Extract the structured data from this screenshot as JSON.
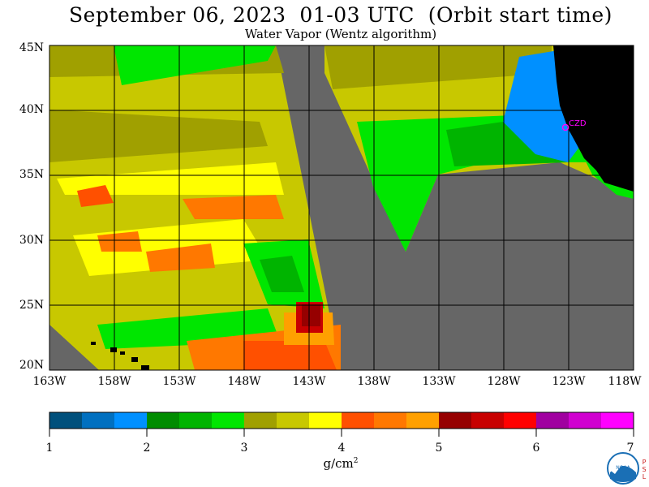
{
  "header": {
    "title": "September 06, 2023  01-03 UTC  (Orbit start time)",
    "subtitle": "Water Vapor (Wentz algorithm)"
  },
  "map": {
    "lat_labels": [
      "45N",
      "40N",
      "35N",
      "30N",
      "25N",
      "20N"
    ],
    "lon_labels": [
      "163W",
      "158W",
      "153W",
      "148W",
      "143W",
      "138W",
      "133W",
      "128W",
      "123W",
      "118W"
    ],
    "city_label": "CZD",
    "colors": {
      "no_data": "#666666",
      "land": "#000000",
      "grid": "#000000",
      "city": "#ff00ff"
    }
  },
  "colorbar": {
    "tick_labels": [
      "1",
      "2",
      "3",
      "4",
      "5",
      "6",
      "7"
    ],
    "unit_label": "g/cm",
    "unit_superscript": "2",
    "colors": [
      "#00507c",
      "#0070c0",
      "#0090ff",
      "#008c00",
      "#00b400",
      "#00e600",
      "#a0a000",
      "#c8c800",
      "#ffff00",
      "#ff5000",
      "#ff7800",
      "#ffa000",
      "#960000",
      "#c80000",
      "#ff0000",
      "#a000a0",
      "#d000d0",
      "#ff00ff"
    ]
  },
  "logo": {
    "text": "NOAA",
    "side_text": "PSL"
  }
}
